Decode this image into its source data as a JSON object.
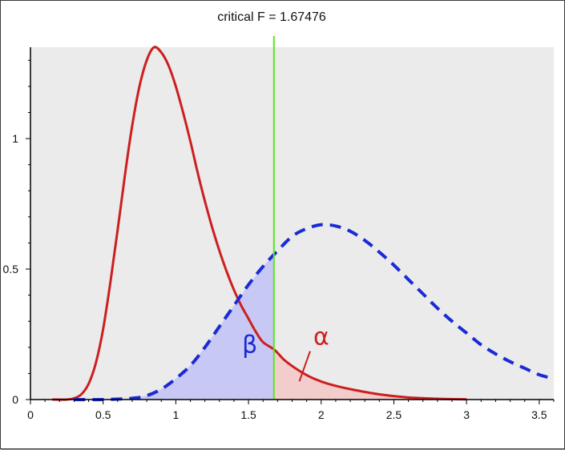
{
  "chart_data": {
    "type": "line",
    "title": "critical F = 1.67476",
    "critical_value": 1.67476,
    "xlabel": "",
    "ylabel": "",
    "xlim": [
      0,
      3.6
    ],
    "ylim": [
      0,
      1.35
    ],
    "x_ticks": [
      "0",
      "0.5",
      "1",
      "1.5",
      "2",
      "2.5",
      "3",
      "3.5"
    ],
    "y_ticks": [
      "0",
      "0.5",
      "1"
    ],
    "x_tick_values": [
      0,
      0.5,
      1,
      1.5,
      2,
      2.5,
      3,
      3.5
    ],
    "y_tick_values": [
      0,
      0.5,
      1
    ],
    "series": [
      {
        "style": "solid",
        "color": "#cc1f1f",
        "x": [
          0.15,
          0.25,
          0.3,
          0.35,
          0.4,
          0.45,
          0.5,
          0.55,
          0.6,
          0.65,
          0.7,
          0.75,
          0.8,
          0.85,
          0.9,
          0.95,
          1.0,
          1.05,
          1.1,
          1.15,
          1.2,
          1.25,
          1.3,
          1.35,
          1.4,
          1.45,
          1.5,
          1.55,
          1.6,
          1.68,
          1.75,
          1.85,
          1.95,
          2.05,
          2.2,
          2.4,
          2.6,
          2.8,
          3.0
        ],
        "y": [
          0.0,
          0.0,
          0.005,
          0.02,
          0.06,
          0.14,
          0.27,
          0.45,
          0.65,
          0.86,
          1.05,
          1.2,
          1.3,
          1.35,
          1.33,
          1.28,
          1.2,
          1.1,
          0.99,
          0.87,
          0.76,
          0.66,
          0.57,
          0.49,
          0.42,
          0.36,
          0.31,
          0.26,
          0.22,
          0.19,
          0.15,
          0.11,
          0.08,
          0.06,
          0.04,
          0.02,
          0.008,
          0.003,
          0.001
        ]
      },
      {
        "style": "dashed",
        "color": "#1a2bd6",
        "x": [
          0.3,
          0.5,
          0.7,
          0.8,
          0.9,
          1.0,
          1.1,
          1.2,
          1.3,
          1.4,
          1.5,
          1.6,
          1.7,
          1.8,
          1.9,
          2.0,
          2.1,
          2.2,
          2.3,
          2.4,
          2.5,
          2.6,
          2.7,
          2.8,
          2.9,
          3.0,
          3.1,
          3.2,
          3.3,
          3.4,
          3.5,
          3.6
        ],
        "y": [
          0.0,
          0.0,
          0.005,
          0.015,
          0.04,
          0.08,
          0.13,
          0.2,
          0.28,
          0.36,
          0.44,
          0.51,
          0.57,
          0.625,
          0.655,
          0.67,
          0.665,
          0.645,
          0.61,
          0.565,
          0.515,
          0.46,
          0.405,
          0.35,
          0.3,
          0.255,
          0.21,
          0.175,
          0.145,
          0.12,
          0.095,
          0.08
        ]
      }
    ],
    "annotations": [
      {
        "text": "β",
        "x": 1.5,
        "y": 0.18,
        "color": "#1a2bd6"
      },
      {
        "text": "α",
        "x": 1.99,
        "y": 0.21,
        "color": "#cc1f1f"
      }
    ],
    "colors": {
      "background": "#ebebeb",
      "axis": "#000000",
      "critical_line": "#5ee61d",
      "beta_fill": "#c8c8f5",
      "alpha_fill": "#f3cccc"
    },
    "grid": false
  }
}
